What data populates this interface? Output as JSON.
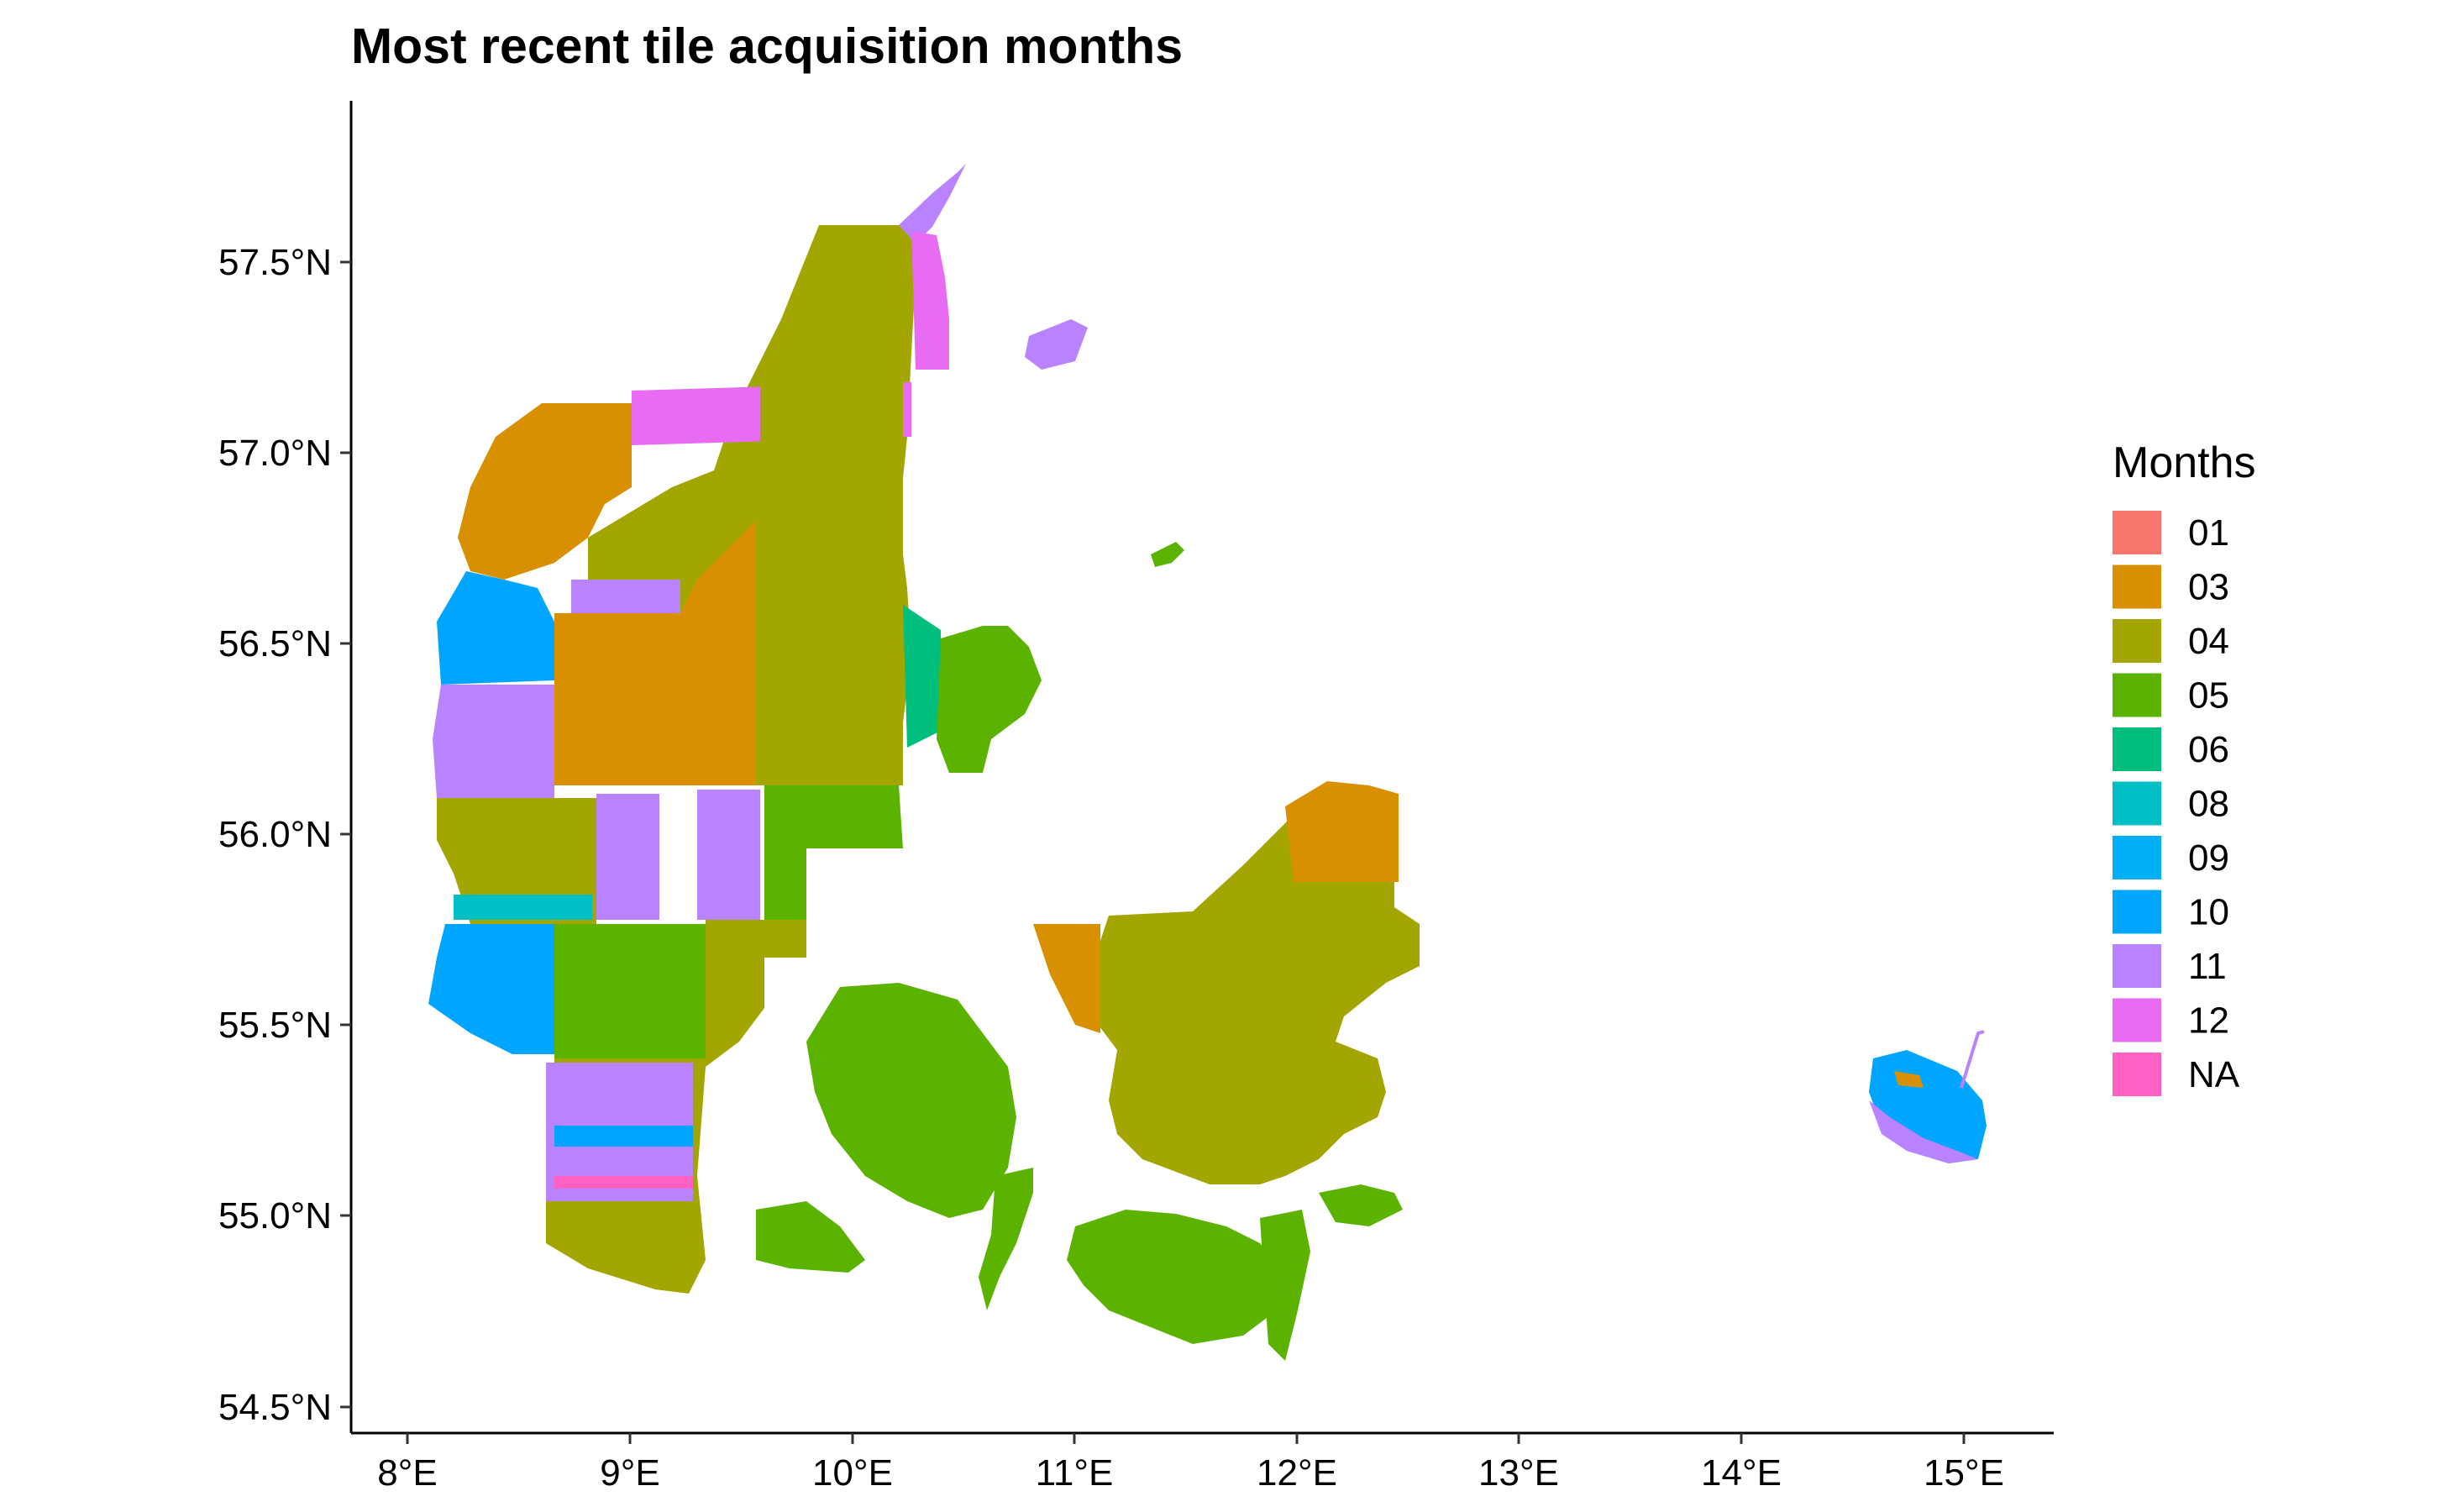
{
  "title": "Most recent tile acquisition months",
  "axes": {
    "x_ticks": [
      "8°E",
      "9°E",
      "10°E",
      "11°E",
      "12°E",
      "13°E",
      "14°E",
      "15°E"
    ],
    "y_ticks": [
      "54.5°N",
      "55.0°N",
      "55.5°N",
      "56.0°N",
      "56.5°N",
      "57.0°N",
      "57.5°N"
    ]
  },
  "legend": {
    "title": "Months",
    "items": [
      {
        "label": "01",
        "color": "#F8766D"
      },
      {
        "label": "03",
        "color": "#D89000"
      },
      {
        "label": "04",
        "color": "#A3A500"
      },
      {
        "label": "05",
        "color": "#5BB300"
      },
      {
        "label": "06",
        "color": "#00BF7D"
      },
      {
        "label": "08",
        "color": "#00BFC4"
      },
      {
        "label": "09",
        "color": "#00B0F6"
      },
      {
        "label": "10",
        "color": "#00A5FF"
      },
      {
        "label": "11",
        "color": "#B983FF"
      },
      {
        "label": "12",
        "color": "#E76BF3"
      },
      {
        "label": "NA",
        "color": "#FF61C3"
      }
    ]
  }
}
